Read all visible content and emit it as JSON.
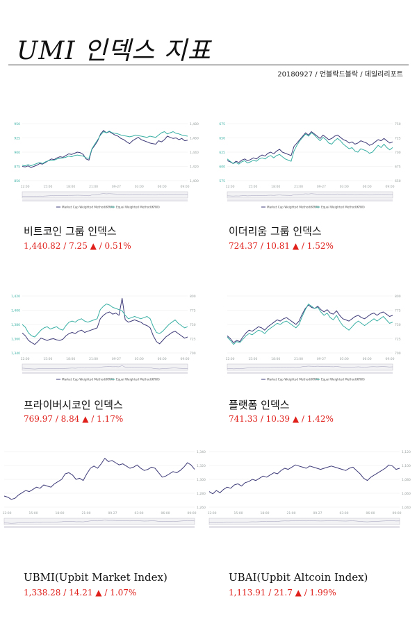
{
  "header": {
    "title": "UMI 인덱스 지표",
    "subtitle": "20180927 / 언블락드블락 / 데일리리포트"
  },
  "colors": {
    "market_cap": "#3d3a78",
    "equal_weight": "#3ab0a4",
    "stats": "#e0201b",
    "axis_text": "#9aa0a0"
  },
  "x_ticks": [
    "12:00",
    "15:00",
    "18:00",
    "21:00",
    "09-27",
    "03:00",
    "06:00",
    "09:00"
  ],
  "legend": {
    "market_cap": "Market Cap Weighted Method(KRW)",
    "equal_weight": "Equal Weighted Method(KRW)"
  },
  "chart_data": [
    {
      "type": "line",
      "name": "비트코인 그룹 인덱스",
      "stats": {
        "value": "1,440.82",
        "change": "7.25",
        "pct": "0.51%",
        "direction": "up-triangle"
      },
      "left_ticks": [
        "850",
        "875",
        "900",
        "925",
        "950"
      ],
      "right_ticks": [
        "1,400",
        "1,420",
        "1,440",
        "1,460",
        "1,480"
      ],
      "legend": true,
      "navigator": true,
      "series": [
        {
          "name": "Market Cap Weighted Method(KRW)",
          "color": "#3d3a78",
          "values": [
            0.25,
            0.24,
            0.26,
            0.23,
            0.25,
            0.27,
            0.3,
            0.29,
            0.32,
            0.35,
            0.38,
            0.37,
            0.4,
            0.42,
            0.41,
            0.44,
            0.47,
            0.46,
            0.48,
            0.5,
            0.49,
            0.46,
            0.38,
            0.36,
            0.55,
            0.62,
            0.7,
            0.82,
            0.88,
            0.84,
            0.86,
            0.83,
            0.8,
            0.78,
            0.74,
            0.72,
            0.68,
            0.65,
            0.7,
            0.73,
            0.76,
            0.72,
            0.7,
            0.68,
            0.66,
            0.65,
            0.64,
            0.7,
            0.68,
            0.72,
            0.78,
            0.76,
            0.74,
            0.75,
            0.72,
            0.74,
            0.7,
            0.71
          ]
        },
        {
          "name": "Equal Weighted Method(KRW)",
          "color": "#3ab0a4",
          "values": [
            0.27,
            0.26,
            0.28,
            0.26,
            0.28,
            0.3,
            0.32,
            0.3,
            0.33,
            0.35,
            0.36,
            0.36,
            0.38,
            0.39,
            0.4,
            0.41,
            0.43,
            0.42,
            0.44,
            0.45,
            0.44,
            0.43,
            0.4,
            0.39,
            0.56,
            0.64,
            0.72,
            0.8,
            0.86,
            0.84,
            0.87,
            0.84,
            0.83,
            0.82,
            0.8,
            0.79,
            0.78,
            0.77,
            0.78,
            0.8,
            0.79,
            0.78,
            0.77,
            0.76,
            0.78,
            0.77,
            0.76,
            0.8,
            0.84,
            0.86,
            0.82,
            0.84,
            0.86,
            0.83,
            0.82,
            0.8,
            0.79,
            0.78
          ]
        }
      ]
    },
    {
      "type": "line",
      "name": "이더리움 그룹 인덱스",
      "stats": {
        "value": "724.37",
        "change": "10.81",
        "pct": "1.52%",
        "direction": "up-triangle"
      },
      "left_ticks": [
        "575",
        "600",
        "625",
        "650",
        "675"
      ],
      "right_ticks": [
        "650",
        "675",
        "700",
        "725",
        "750"
      ],
      "legend": true,
      "navigator": true,
      "series": [
        {
          "name": "Market Cap Weighted Method(KRW)",
          "color": "#3d3a78",
          "values": [
            0.35,
            0.33,
            0.3,
            0.34,
            0.32,
            0.36,
            0.38,
            0.35,
            0.37,
            0.4,
            0.38,
            0.42,
            0.45,
            0.43,
            0.48,
            0.5,
            0.47,
            0.52,
            0.55,
            0.5,
            0.48,
            0.46,
            0.44,
            0.6,
            0.66,
            0.72,
            0.78,
            0.84,
            0.8,
            0.86,
            0.82,
            0.78,
            0.74,
            0.8,
            0.76,
            0.72,
            0.74,
            0.78,
            0.8,
            0.76,
            0.72,
            0.7,
            0.66,
            0.68,
            0.64,
            0.66,
            0.7,
            0.68,
            0.66,
            0.62,
            0.64,
            0.68,
            0.72,
            0.7,
            0.74,
            0.7,
            0.66,
            0.68
          ]
        },
        {
          "name": "Equal Weighted Method(KRW)",
          "color": "#3ab0a4",
          "values": [
            0.38,
            0.34,
            0.3,
            0.32,
            0.29,
            0.33,
            0.35,
            0.31,
            0.33,
            0.36,
            0.34,
            0.38,
            0.4,
            0.38,
            0.42,
            0.44,
            0.4,
            0.44,
            0.46,
            0.42,
            0.38,
            0.36,
            0.34,
            0.52,
            0.62,
            0.7,
            0.76,
            0.82,
            0.78,
            0.84,
            0.8,
            0.75,
            0.7,
            0.76,
            0.72,
            0.66,
            0.64,
            0.7,
            0.74,
            0.7,
            0.64,
            0.6,
            0.56,
            0.58,
            0.52,
            0.5,
            0.56,
            0.54,
            0.52,
            0.48,
            0.5,
            0.56,
            0.62,
            0.58,
            0.64,
            0.58,
            0.54,
            0.58
          ]
        }
      ]
    },
    {
      "type": "line",
      "name": "프라이버시코인 인덱스",
      "stats": {
        "value": "769.97",
        "change": "8.84",
        "pct": "1.17%",
        "direction": "up-triangle"
      },
      "left_ticks": [
        "1,340",
        "1,360",
        "1,380",
        "1,400",
        "1,420"
      ],
      "right_ticks": [
        "700",
        "725",
        "750",
        "775",
        "800"
      ],
      "legend": true,
      "navigator": true,
      "series": [
        {
          "name": "Market Cap Weighted Method(KRW)",
          "color": "#3d3a78",
          "values": [
            0.35,
            0.3,
            0.22,
            0.18,
            0.15,
            0.2,
            0.26,
            0.24,
            0.22,
            0.24,
            0.25,
            0.23,
            0.22,
            0.24,
            0.3,
            0.34,
            0.36,
            0.34,
            0.38,
            0.4,
            0.36,
            0.38,
            0.4,
            0.42,
            0.44,
            0.6,
            0.66,
            0.7,
            0.72,
            0.68,
            0.7,
            0.66,
            0.96,
            0.58,
            0.54,
            0.56,
            0.58,
            0.56,
            0.54,
            0.5,
            0.48,
            0.44,
            0.3,
            0.2,
            0.16,
            0.22,
            0.28,
            0.32,
            0.36,
            0.38,
            0.34,
            0.3,
            0.26,
            0.28
          ]
        },
        {
          "name": "Equal Weighted Method(KRW)",
          "color": "#3ab0a4",
          "values": [
            0.5,
            0.45,
            0.35,
            0.3,
            0.28,
            0.34,
            0.4,
            0.44,
            0.46,
            0.42,
            0.44,
            0.46,
            0.42,
            0.4,
            0.48,
            0.54,
            0.56,
            0.54,
            0.58,
            0.6,
            0.56,
            0.54,
            0.56,
            0.58,
            0.6,
            0.76,
            0.82,
            0.86,
            0.84,
            0.8,
            0.78,
            0.76,
            0.74,
            0.66,
            0.6,
            0.62,
            0.64,
            0.62,
            0.6,
            0.62,
            0.64,
            0.6,
            0.46,
            0.36,
            0.34,
            0.38,
            0.44,
            0.5,
            0.54,
            0.58,
            0.52,
            0.48,
            0.44,
            0.46
          ]
        }
      ]
    },
    {
      "type": "line",
      "name": "플랫폼 인덱스",
      "stats": {
        "value": "741.33",
        "change": "10.39",
        "pct": "1.42%",
        "direction": "up-triangle"
      },
      "left_ticks": [
        "",
        "",
        "",
        "",
        ""
      ],
      "right_ticks": [
        "700",
        "725",
        "750",
        "775",
        "800"
      ],
      "legend": true,
      "navigator": true,
      "series": [
        {
          "name": "Market Cap Weighted Method(KRW)",
          "color": "#3d3a78",
          "values": [
            0.3,
            0.25,
            0.18,
            0.22,
            0.2,
            0.28,
            0.35,
            0.4,
            0.38,
            0.42,
            0.46,
            0.44,
            0.4,
            0.46,
            0.5,
            0.54,
            0.58,
            0.56,
            0.6,
            0.62,
            0.58,
            0.54,
            0.5,
            0.56,
            0.68,
            0.78,
            0.84,
            0.8,
            0.78,
            0.82,
            0.76,
            0.72,
            0.76,
            0.7,
            0.68,
            0.74,
            0.66,
            0.6,
            0.58,
            0.56,
            0.6,
            0.64,
            0.66,
            0.62,
            0.6,
            0.64,
            0.68,
            0.7,
            0.66,
            0.7,
            0.72,
            0.68,
            0.64,
            0.66
          ]
        },
        {
          "name": "Equal Weighted Method(KRW)",
          "color": "#3ab0a4",
          "values": [
            0.28,
            0.22,
            0.15,
            0.2,
            0.18,
            0.24,
            0.3,
            0.34,
            0.32,
            0.36,
            0.4,
            0.38,
            0.34,
            0.4,
            0.44,
            0.48,
            0.52,
            0.5,
            0.54,
            0.56,
            0.52,
            0.48,
            0.44,
            0.5,
            0.64,
            0.76,
            0.86,
            0.82,
            0.78,
            0.8,
            0.72,
            0.66,
            0.7,
            0.62,
            0.58,
            0.66,
            0.56,
            0.48,
            0.44,
            0.4,
            0.46,
            0.52,
            0.56,
            0.52,
            0.48,
            0.52,
            0.56,
            0.6,
            0.56,
            0.6,
            0.64,
            0.58,
            0.52,
            0.54
          ]
        }
      ]
    },
    {
      "type": "line",
      "name": "UBMI(Upbit Market Index)",
      "stats": {
        "value": "1,338.28",
        "change": "14.21",
        "pct": "1.07%",
        "direction": "up-triangle"
      },
      "left_ticks": [],
      "right_ticks": [
        "1,260",
        "1,280",
        "1,300",
        "1,320",
        "1,340"
      ],
      "legend": false,
      "navigator": true,
      "series": [
        {
          "name": "",
          "color": "#3d3a78",
          "values": [
            0.2,
            0.18,
            0.14,
            0.16,
            0.22,
            0.26,
            0.3,
            0.28,
            0.32,
            0.36,
            0.34,
            0.4,
            0.38,
            0.36,
            0.42,
            0.46,
            0.5,
            0.6,
            0.62,
            0.58,
            0.5,
            0.52,
            0.48,
            0.6,
            0.7,
            0.74,
            0.7,
            0.78,
            0.88,
            0.82,
            0.84,
            0.8,
            0.76,
            0.78,
            0.74,
            0.7,
            0.72,
            0.76,
            0.7,
            0.66,
            0.68,
            0.72,
            0.7,
            0.62,
            0.54,
            0.56,
            0.6,
            0.64,
            0.62,
            0.66,
            0.72,
            0.8,
            0.76,
            0.68
          ]
        }
      ]
    },
    {
      "type": "line",
      "name": "UBAI(Upbit Altcoin Index)",
      "stats": {
        "value": "1,113.91",
        "change": "21.7",
        "pct": "1.99%",
        "direction": "up-triangle"
      },
      "left_ticks": [],
      "right_ticks": [
        "1,040",
        "1,060",
        "1,080",
        "1,100",
        "1,120"
      ],
      "legend": false,
      "navigator": true,
      "series": [
        {
          "name": "",
          "color": "#3d3a78",
          "values": [
            0.28,
            0.24,
            0.3,
            0.26,
            0.32,
            0.36,
            0.34,
            0.4,
            0.42,
            0.38,
            0.44,
            0.46,
            0.5,
            0.48,
            0.52,
            0.56,
            0.54,
            0.58,
            0.62,
            0.6,
            0.66,
            0.7,
            0.68,
            0.72,
            0.76,
            0.74,
            0.72,
            0.7,
            0.74,
            0.72,
            0.7,
            0.68,
            0.7,
            0.72,
            0.74,
            0.72,
            0.7,
            0.68,
            0.66,
            0.7,
            0.72,
            0.66,
            0.6,
            0.52,
            0.48,
            0.54,
            0.58,
            0.62,
            0.66,
            0.7,
            0.76,
            0.74,
            0.68,
            0.7
          ]
        }
      ]
    }
  ]
}
